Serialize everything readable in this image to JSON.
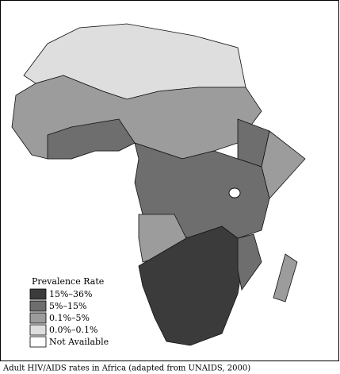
{
  "legend": {
    "title": "Prevalence Rate",
    "items": [
      {
        "label": "15%–36%",
        "color": "#3b3b3b"
      },
      {
        "label": "5%–15%",
        "color": "#6e6e6e"
      },
      {
        "label": "0.1%–5%",
        "color": "#9c9c9c"
      },
      {
        "label": "0.0%–0.1%",
        "color": "#dedede"
      },
      {
        "label": "Not Available",
        "color": "#ffffff"
      }
    ]
  },
  "caption": "Adult HIV/AIDS rates in Africa (adapted from UNAIDS, 2000)"
}
